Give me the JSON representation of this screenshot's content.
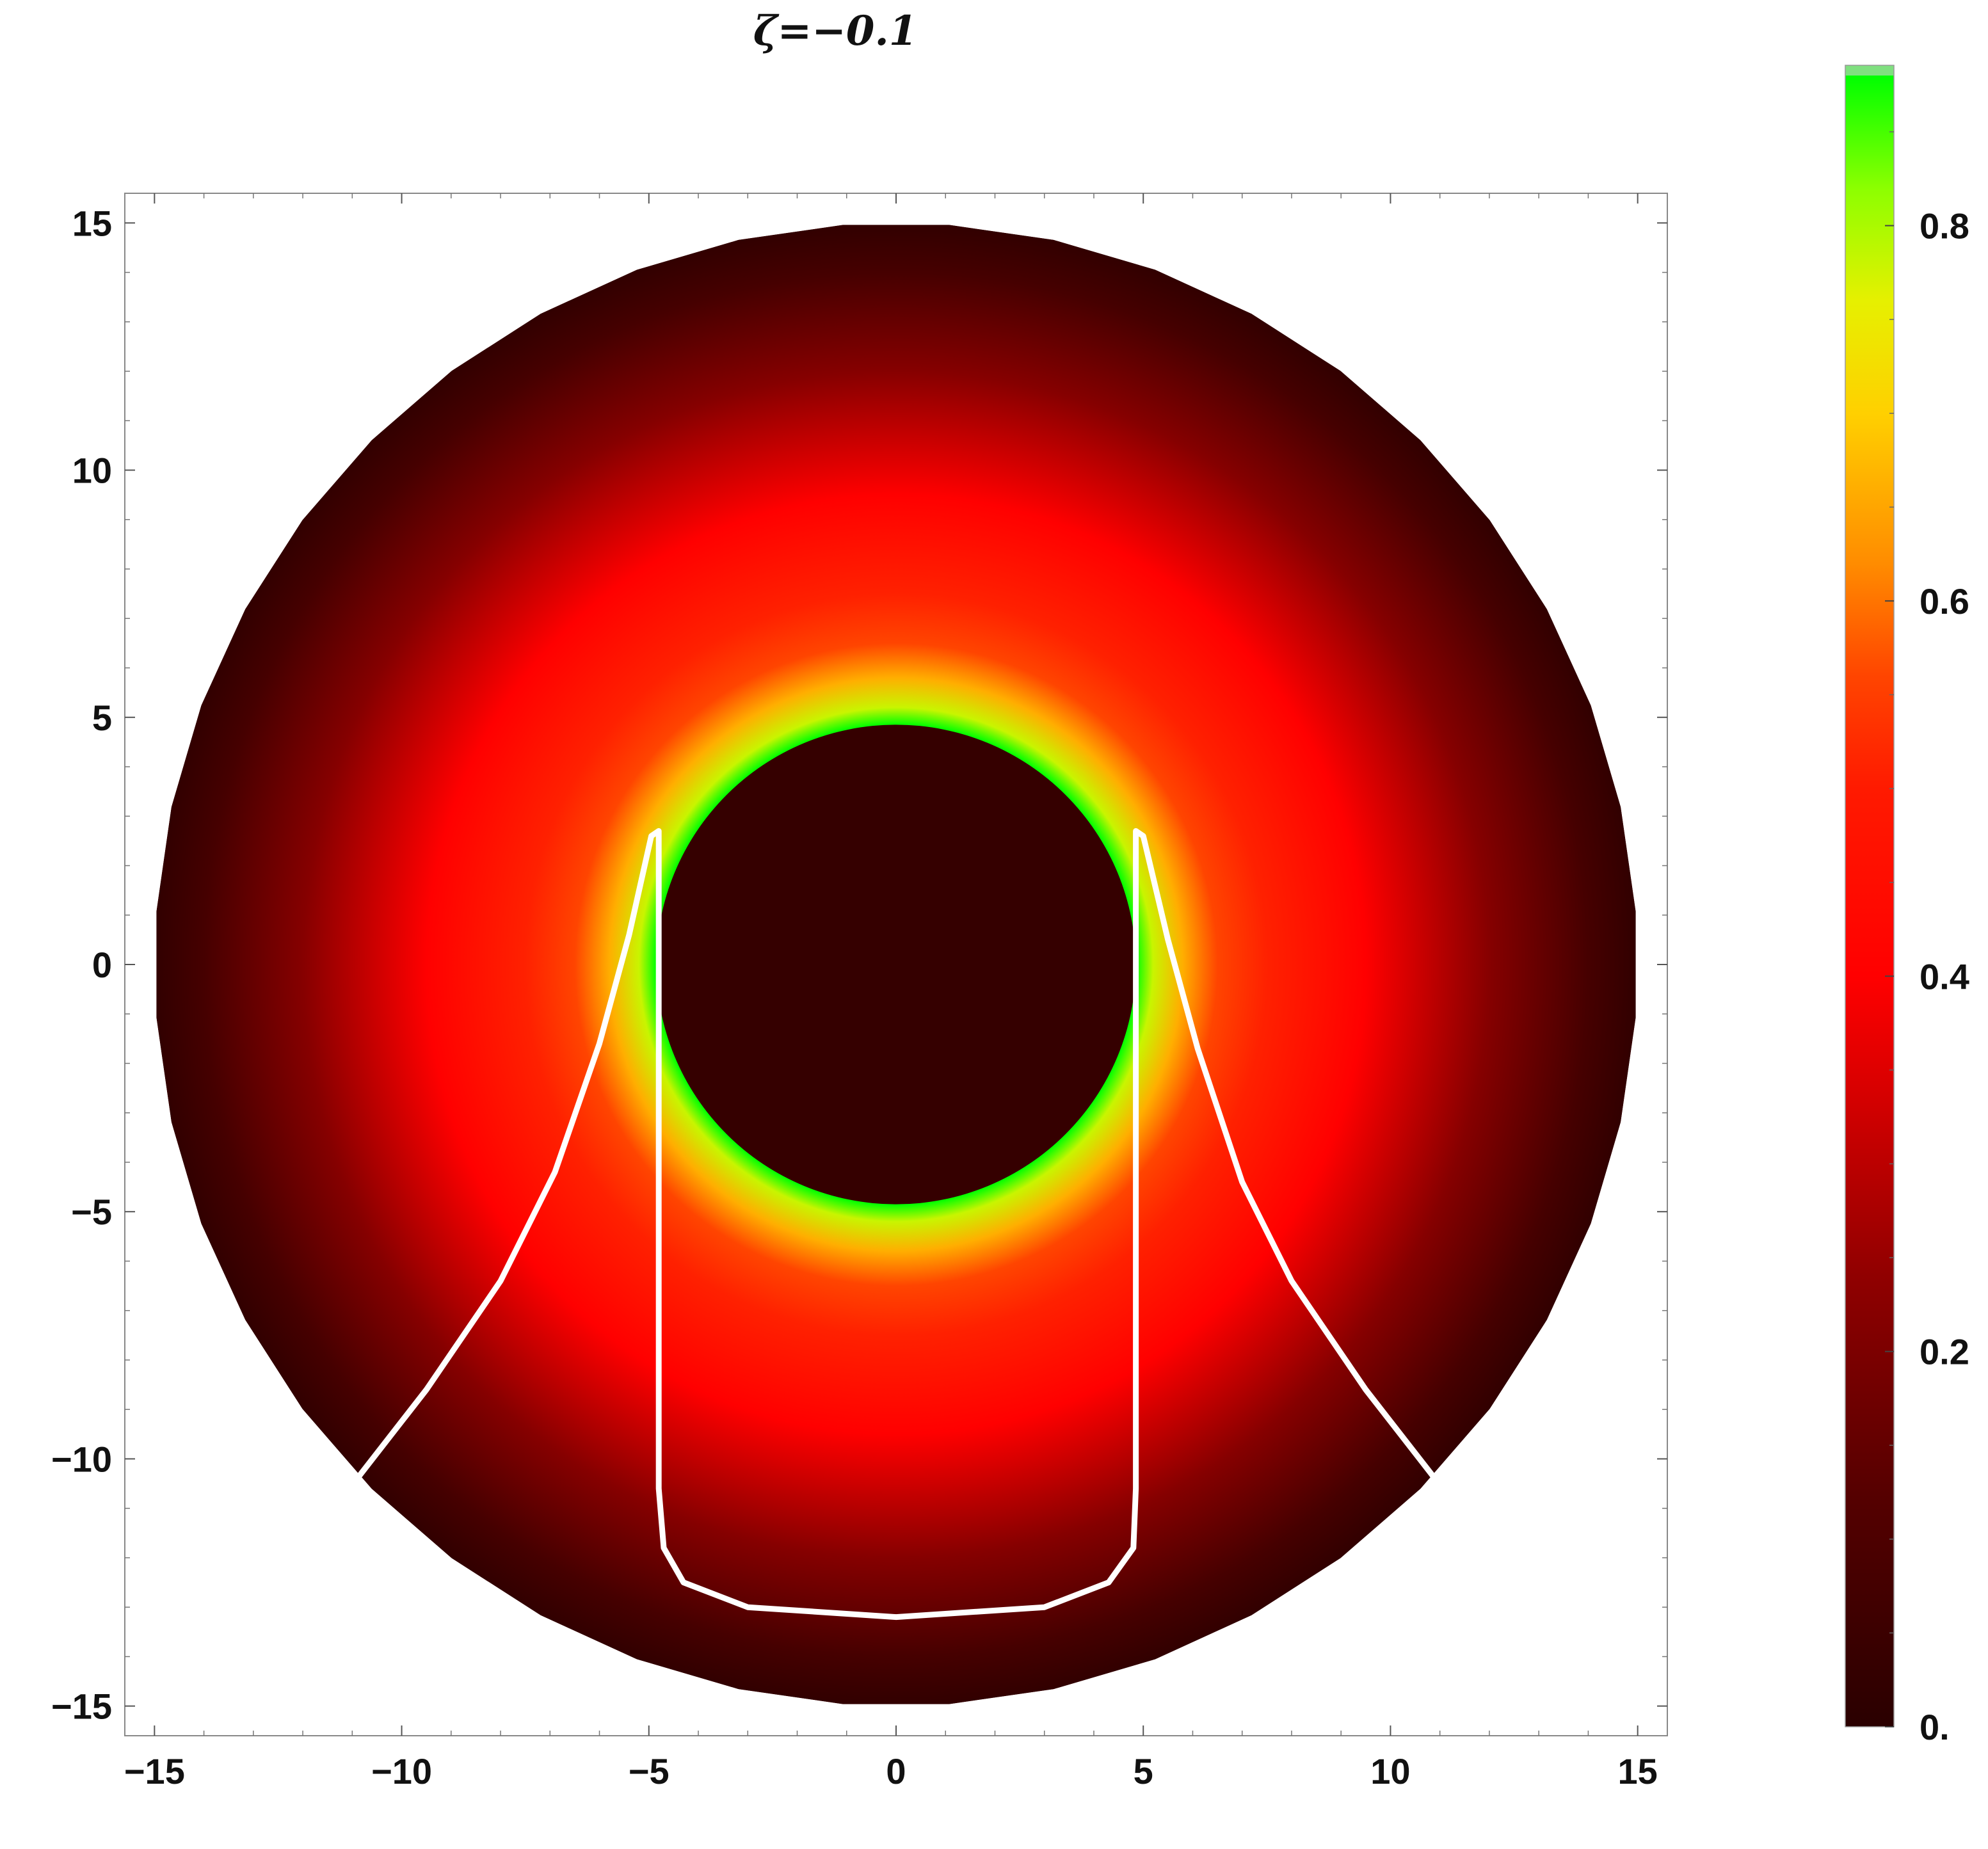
{
  "chart_data": {
    "type": "heatmap",
    "title": "ζ=−0.1",
    "xlabel": "",
    "ylabel": "",
    "xlim": [
      -15.6,
      15.6
    ],
    "ylim": [
      -15.6,
      15.6
    ],
    "x_ticks": [
      -15,
      -10,
      -5,
      0,
      5,
      10,
      15
    ],
    "y_ticks": [
      -15,
      -10,
      -5,
      0,
      5,
      10,
      15
    ],
    "x_tick_labels": [
      "−15",
      "−10",
      "−5",
      "0",
      "5",
      "10",
      "15"
    ],
    "y_tick_labels": [
      "−15",
      "−10",
      "−5",
      "0",
      "5",
      "10",
      "15"
    ],
    "field": {
      "outer_radius": 15,
      "outer_polygon_sides": 44,
      "shadow_radius": 4.85,
      "shadow_value": 0.03,
      "radial_profile": [
        [
          4.85,
          0.88
        ],
        [
          5.2,
          0.78
        ],
        [
          5.8,
          0.66
        ],
        [
          6.5,
          0.56
        ],
        [
          7.5,
          0.51
        ],
        [
          9.5,
          0.4
        ],
        [
          12,
          0.22
        ],
        [
          14,
          0.08
        ],
        [
          15,
          0.02
        ]
      ]
    },
    "contours": [
      {
        "name": "",
        "color": "#ffffff",
        "points": [
          [
            -10.9,
            -10.4
          ],
          [
            -9.5,
            -8.6
          ],
          [
            -8.0,
            -6.4
          ],
          [
            -6.9,
            -4.2
          ],
          [
            -6.0,
            -1.6
          ],
          [
            -5.4,
            0.6
          ],
          [
            -4.95,
            2.6
          ],
          [
            -4.8,
            2.7
          ],
          [
            -4.8,
            -10.6
          ],
          [
            -4.7,
            -11.8
          ],
          [
            -4.3,
            -12.5
          ],
          [
            -3.0,
            -13.0
          ],
          [
            0.0,
            -13.2
          ],
          [
            3.0,
            -13.0
          ],
          [
            4.3,
            -12.5
          ],
          [
            4.8,
            -11.8
          ],
          [
            4.85,
            -10.6
          ],
          [
            4.85,
            2.7
          ],
          [
            5.0,
            2.6
          ],
          [
            5.5,
            0.5
          ],
          [
            6.1,
            -1.7
          ],
          [
            7.0,
            -4.4
          ],
          [
            8.0,
            -6.4
          ],
          [
            9.5,
            -8.6
          ],
          [
            10.9,
            -10.4
          ]
        ]
      }
    ],
    "colorbar": {
      "min": 0,
      "max": 0.88,
      "ticks": [
        0,
        0.2,
        0.4,
        0.6,
        0.8
      ],
      "tick_labels": [
        "0.",
        "0.2",
        "0.4",
        "0.6",
        "0.8"
      ],
      "colors": [
        [
          0.0,
          "#2a0000"
        ],
        [
          0.12,
          "#540000"
        ],
        [
          0.24,
          "#900000"
        ],
        [
          0.34,
          "#d80000"
        ],
        [
          0.4,
          "#ff0000"
        ],
        [
          0.5,
          "#ff1a00"
        ],
        [
          0.56,
          "#ff4500"
        ],
        [
          0.62,
          "#ff8c00"
        ],
        [
          0.7,
          "#ffd000"
        ],
        [
          0.76,
          "#e6f000"
        ],
        [
          0.82,
          "#8cff00"
        ],
        [
          0.88,
          "#00ff00"
        ]
      ]
    }
  }
}
